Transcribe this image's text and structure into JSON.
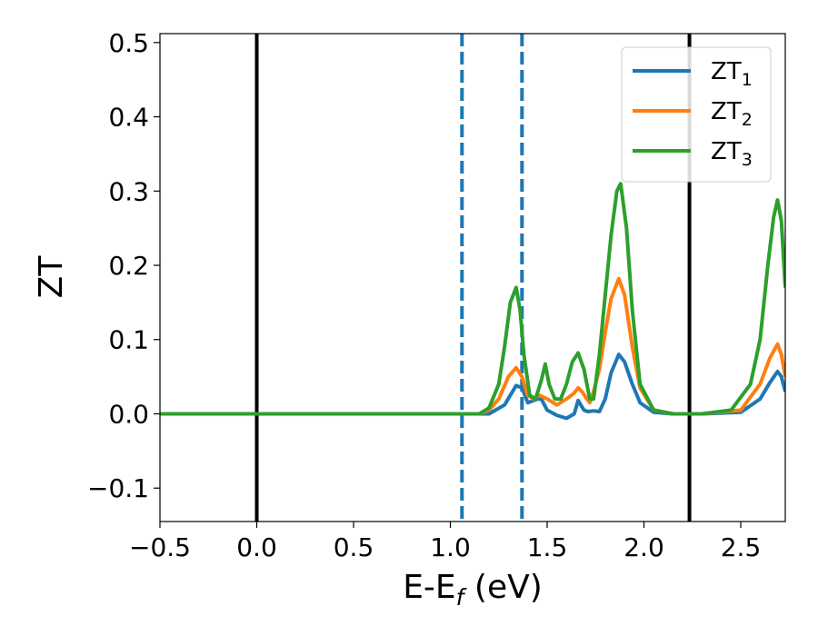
{
  "chart_data": {
    "type": "line",
    "xlabel": "E-E",
    "xlabel_sub": "f",
    "xlabel_unit": " (eV)",
    "ylabel": "ZT",
    "xlim": [
      -0.5,
      2.73
    ],
    "ylim": [
      -0.145,
      0.512
    ],
    "xticks": [
      -0.5,
      0.0,
      0.5,
      1.0,
      1.5,
      2.0,
      2.5
    ],
    "xtick_labels": [
      "−0.5",
      "0.0",
      "0.5",
      "1.0",
      "1.5",
      "2.0",
      "2.5"
    ],
    "yticks": [
      -0.1,
      0.0,
      0.1,
      0.2,
      0.3,
      0.4,
      0.5
    ],
    "ytick_labels": [
      "−0.1",
      "0.0",
      "0.1",
      "0.2",
      "0.3",
      "0.4",
      "0.5"
    ],
    "grid": false,
    "legend_position": "top-right",
    "vlines": [
      {
        "x": 0.0,
        "style": "solid",
        "color": "#000000"
      },
      {
        "x": 2.235,
        "style": "solid",
        "color": "#000000"
      },
      {
        "x": 1.06,
        "style": "dashed",
        "color": "#1f77b4"
      },
      {
        "x": 1.37,
        "style": "dashed",
        "color": "#1f77b4"
      }
    ],
    "series": [
      {
        "name": "ZT",
        "subscript": "1",
        "color": "#1f77b4",
        "x": [
          -0.5,
          1.0,
          1.2,
          1.28,
          1.34,
          1.37,
          1.4,
          1.45,
          1.47,
          1.5,
          1.55,
          1.6,
          1.64,
          1.66,
          1.69,
          1.71,
          1.74,
          1.77,
          1.8,
          1.83,
          1.87,
          1.9,
          1.94,
          1.98,
          2.05,
          2.15,
          2.3,
          2.5,
          2.6,
          2.65,
          2.69,
          2.71,
          2.73
        ],
        "y": [
          0.0,
          0.0,
          0.0,
          0.012,
          0.038,
          0.035,
          0.015,
          0.02,
          0.02,
          0.005,
          -0.002,
          -0.006,
          0.0,
          0.018,
          0.005,
          0.003,
          0.004,
          0.003,
          0.02,
          0.055,
          0.08,
          0.07,
          0.04,
          0.015,
          0.002,
          0.0,
          0.0,
          0.002,
          0.02,
          0.042,
          0.057,
          0.05,
          0.03
        ]
      },
      {
        "name": "ZT",
        "subscript": "2",
        "color": "#ff7f0e",
        "x": [
          -0.5,
          1.0,
          1.15,
          1.2,
          1.25,
          1.3,
          1.34,
          1.37,
          1.4,
          1.43,
          1.46,
          1.5,
          1.55,
          1.6,
          1.64,
          1.66,
          1.68,
          1.7,
          1.72,
          1.74,
          1.77,
          1.8,
          1.83,
          1.87,
          1.9,
          1.94,
          1.98,
          2.05,
          2.15,
          2.3,
          2.5,
          2.6,
          2.65,
          2.69,
          2.71,
          2.73
        ],
        "y": [
          0.0,
          0.0,
          0.0,
          0.005,
          0.02,
          0.05,
          0.062,
          0.05,
          0.025,
          0.02,
          0.025,
          0.02,
          0.012,
          0.02,
          0.028,
          0.035,
          0.03,
          0.022,
          0.015,
          0.03,
          0.06,
          0.11,
          0.155,
          0.182,
          0.16,
          0.09,
          0.035,
          0.005,
          0.0,
          0.0,
          0.005,
          0.04,
          0.075,
          0.094,
          0.08,
          0.05
        ]
      },
      {
        "name": "ZT",
        "subscript": "3",
        "color": "#2ca02c",
        "x": [
          -0.5,
          1.0,
          1.15,
          1.2,
          1.25,
          1.28,
          1.31,
          1.34,
          1.36,
          1.38,
          1.41,
          1.44,
          1.47,
          1.49,
          1.51,
          1.54,
          1.57,
          1.6,
          1.63,
          1.66,
          1.69,
          1.72,
          1.74,
          1.77,
          1.8,
          1.83,
          1.86,
          1.88,
          1.91,
          1.94,
          1.98,
          2.05,
          2.15,
          2.3,
          2.45,
          2.55,
          2.6,
          2.64,
          2.67,
          2.69,
          2.71,
          2.73
        ],
        "y": [
          0.0,
          0.0,
          0.0,
          0.008,
          0.04,
          0.09,
          0.15,
          0.17,
          0.14,
          0.08,
          0.025,
          0.02,
          0.045,
          0.067,
          0.04,
          0.02,
          0.02,
          0.04,
          0.07,
          0.082,
          0.06,
          0.02,
          0.02,
          0.08,
          0.16,
          0.24,
          0.3,
          0.31,
          0.25,
          0.14,
          0.04,
          0.005,
          0.0,
          0.0,
          0.005,
          0.04,
          0.1,
          0.2,
          0.265,
          0.288,
          0.26,
          0.17
        ]
      }
    ]
  }
}
